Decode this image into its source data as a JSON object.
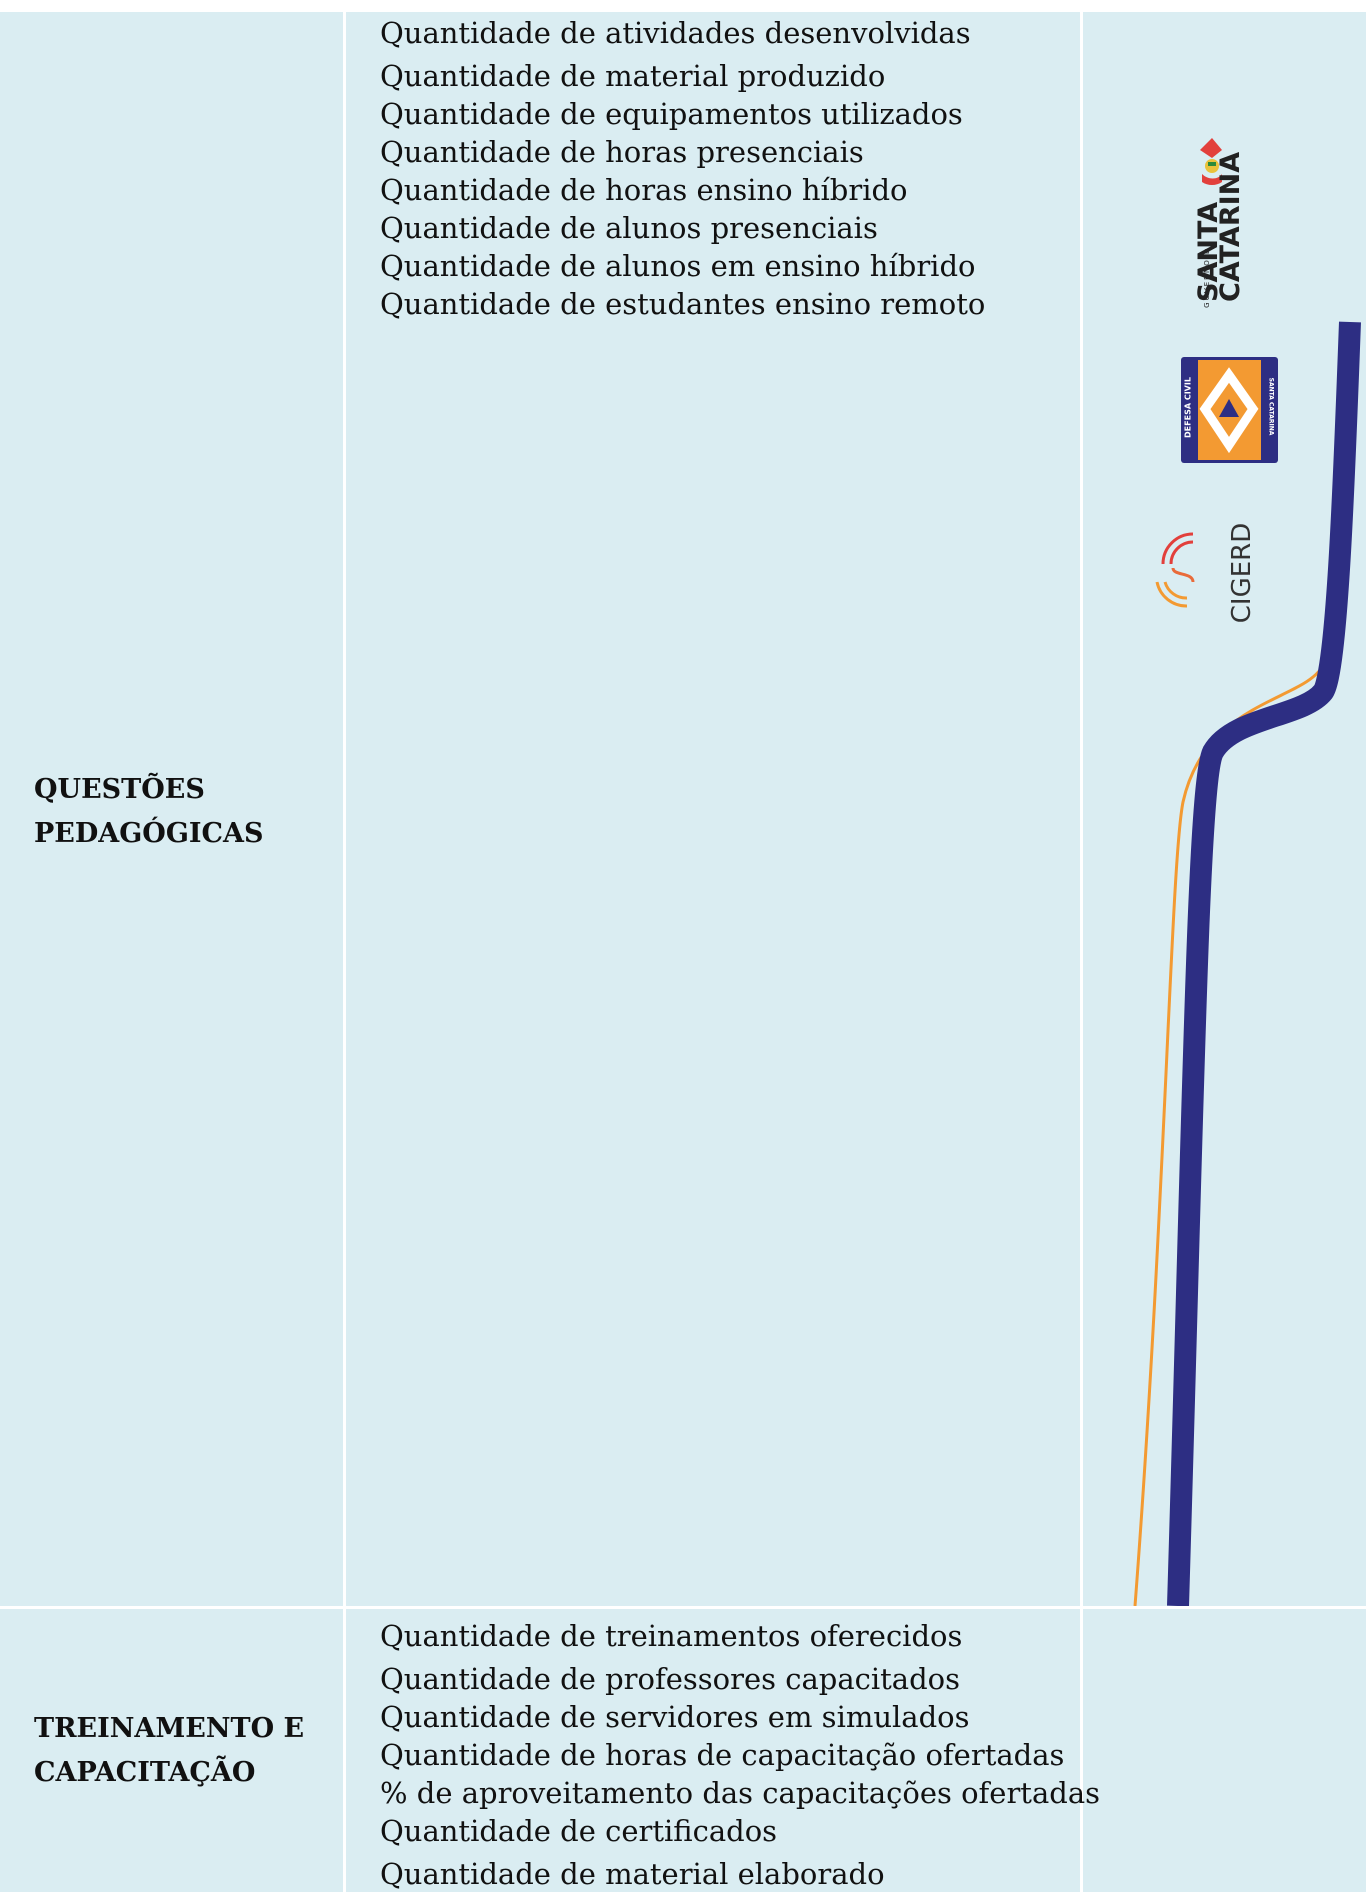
{
  "rows": [
    {
      "category_line1": "QUESTÕES",
      "category_line2": "PEDAGÓGICAS",
      "items": [
        "Quantidade de atividades desenvolvidas",
        "Quantidade de material produzido",
        "Quantidade de equipamentos utilizados",
        "Quantidade de horas presenciais",
        "Quantidade de horas ensino híbrido",
        "Quantidade de alunos presenciais",
        "Quantidade de alunos em ensino híbrido",
        "Quantidade de estudantes ensino remoto"
      ]
    },
    {
      "category_line1": "TREINAMENTO E",
      "category_line2": "CAPACITAÇÃO",
      "items": [
        "Quantidade de treinamentos oferecidos",
        "Quantidade de professores capacitados",
        "Quantidade de servidores em simulados",
        "Quantidade de horas de capacitação ofertadas",
        "% de aproveitamento das capacitações ofertadas",
        "Quantidade de certificados",
        "Quantidade de material elaborado"
      ]
    }
  ],
  "logos": {
    "governo_prefix": "GOVERNO DE",
    "governo_line1": "SANTA",
    "governo_line2": "CATARINA",
    "defesa_left": "DEFESA CIVIL",
    "defesa_right": "SANTA CATARINA",
    "cigerd": "CIGERD"
  },
  "colors": {
    "cell_bg": "#daedf2",
    "navy": "#2d2e83",
    "orange": "#f39a32",
    "red": "#e2403c"
  }
}
